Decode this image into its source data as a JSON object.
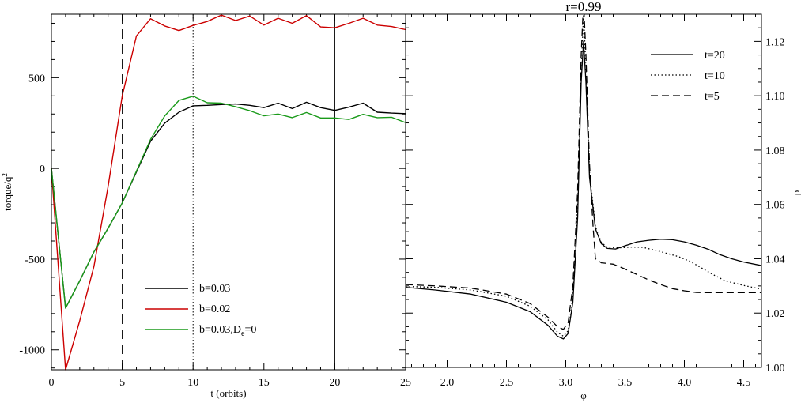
{
  "chart_data": [
    {
      "type": "line",
      "xlabel": "t (orbits)",
      "ylabel_base": "torque/q",
      "ylabel_sup": "2",
      "xlim": [
        0,
        25
      ],
      "ylim": [
        -1110,
        850
      ],
      "x_ticks": [
        0,
        5,
        10,
        15,
        20
      ],
      "x_tick_labels": [
        "0",
        "5",
        "10",
        "15",
        "20"
      ],
      "y_ticks": [
        -1000,
        -500,
        0,
        500
      ],
      "y_tick_labels": [
        "-1000",
        "-500",
        "0",
        "500"
      ],
      "vlines": [
        {
          "x": 5,
          "style": "dashed"
        },
        {
          "x": 10,
          "style": "dotted"
        },
        {
          "x": 20,
          "style": "solid"
        }
      ],
      "series": [
        {
          "name": "b=0.03",
          "color": "#000000",
          "x": [
            0,
            1,
            2,
            3,
            4,
            5,
            6,
            7,
            8,
            9,
            10,
            11,
            12,
            13,
            14,
            15,
            16,
            17,
            18,
            19,
            20,
            21,
            22,
            23,
            24,
            25
          ],
          "y": [
            0,
            -770,
            -620,
            -460,
            -330,
            -190,
            -20,
            150,
            250,
            310,
            345,
            348,
            352,
            355,
            348,
            335,
            360,
            330,
            365,
            335,
            320,
            338,
            360,
            310,
            305,
            302
          ]
        },
        {
          "name": "b=0.02",
          "color": "#cc0000",
          "x": [
            0,
            1,
            2,
            3,
            4,
            5,
            6,
            7,
            8,
            9,
            10,
            11,
            12,
            13,
            14,
            15,
            16,
            17,
            18,
            19,
            20,
            21,
            22,
            23,
            24,
            25
          ],
          "y": [
            0,
            -1110,
            -840,
            -540,
            -100,
            400,
            730,
            825,
            785,
            760,
            788,
            810,
            845,
            815,
            840,
            790,
            828,
            800,
            842,
            780,
            775,
            800,
            828,
            790,
            782,
            765
          ]
        },
        {
          "name_base": "b=0.03,D",
          "name_sub": "e",
          "name_tail": "=0",
          "color": "#1a9a1a",
          "x": [
            0,
            1,
            2,
            3,
            4,
            5,
            6,
            7,
            8,
            9,
            10,
            11,
            12,
            13,
            14,
            15,
            16,
            17,
            18,
            19,
            20,
            21,
            22,
            23,
            24,
            25
          ],
          "y": [
            0,
            -770,
            -620,
            -460,
            -330,
            -190,
            -15,
            160,
            290,
            375,
            398,
            362,
            360,
            340,
            318,
            290,
            300,
            280,
            308,
            278,
            278,
            270,
            298,
            280,
            282,
            253
          ]
        }
      ],
      "legend_position": "bottom-center"
    },
    {
      "type": "line",
      "title": "r=0.99",
      "xlabel": "φ",
      "ylabel": "ρ",
      "xlim": [
        1.65,
        4.65
      ],
      "ylim": [
        1.0,
        1.13
      ],
      "x_ticks": [
        2.0,
        2.5,
        3.0,
        3.5,
        4.0,
        4.5
      ],
      "x_tick_labels": [
        "2.0",
        "2.5",
        "3.0",
        "3.5",
        "4.0",
        "4.5"
      ],
      "y_ticks": [
        1.0,
        1.02,
        1.04,
        1.06,
        1.08,
        1.1,
        1.12
      ],
      "y_tick_labels": [
        "1.00",
        "1.02",
        "1.04",
        "1.06",
        "1.08",
        "1.10",
        "1.12"
      ],
      "series": [
        {
          "name": "t=20",
          "style": "solid",
          "x": [
            1.65,
            1.9,
            2.2,
            2.5,
            2.7,
            2.85,
            2.93,
            2.98,
            3.02,
            3.06,
            3.1,
            3.13,
            3.15,
            3.17,
            3.2,
            3.25,
            3.3,
            3.35,
            3.42,
            3.5,
            3.6,
            3.7,
            3.8,
            3.9,
            4.0,
            4.1,
            4.2,
            4.3,
            4.4,
            4.5,
            4.65
          ],
          "y": [
            1.0295,
            1.0285,
            1.027,
            1.024,
            1.0205,
            1.0155,
            1.0115,
            1.0105,
            1.0125,
            1.024,
            1.055,
            1.105,
            1.12,
            1.105,
            1.07,
            1.051,
            1.0455,
            1.0438,
            1.0436,
            1.0448,
            1.0462,
            1.0468,
            1.0472,
            1.047,
            1.0462,
            1.045,
            1.0435,
            1.0415,
            1.04,
            1.0388,
            1.0375
          ]
        },
        {
          "name": "t=10",
          "style": "dotted",
          "x": [
            1.65,
            1.9,
            2.2,
            2.5,
            2.7,
            2.85,
            2.93,
            2.98,
            3.02,
            3.06,
            3.1,
            3.13,
            3.15,
            3.17,
            3.2,
            3.25,
            3.3,
            3.35,
            3.45,
            3.55,
            3.65,
            3.75,
            3.85,
            3.95,
            4.05,
            4.15,
            4.25,
            4.35,
            4.5,
            4.65
          ],
          "y": [
            1.0298,
            1.0295,
            1.0285,
            1.0262,
            1.0225,
            1.0175,
            1.013,
            1.0115,
            1.0135,
            1.026,
            1.06,
            1.11,
            1.13,
            1.11,
            1.072,
            1.0518,
            1.046,
            1.0442,
            1.044,
            1.0443,
            1.0442,
            1.0432,
            1.042,
            1.0408,
            1.039,
            1.0365,
            1.034,
            1.0318,
            1.0302,
            1.0288
          ]
        },
        {
          "name": "t=5",
          "style": "dashed",
          "x": [
            1.65,
            1.9,
            2.2,
            2.5,
            2.7,
            2.85,
            2.93,
            2.98,
            3.02,
            3.06,
            3.1,
            3.13,
            3.15,
            3.17,
            3.2,
            3.23,
            3.25,
            3.3,
            3.4,
            3.5,
            3.6,
            3.7,
            3.8,
            3.9,
            4.0,
            4.1,
            4.2,
            4.3,
            4.4,
            4.5,
            4.65
          ],
          "y": [
            1.0305,
            1.03,
            1.0292,
            1.027,
            1.0235,
            1.0185,
            1.015,
            1.014,
            1.0165,
            1.03,
            1.065,
            1.115,
            1.135,
            1.115,
            1.075,
            1.052,
            1.04,
            1.0385,
            1.038,
            1.0362,
            1.0342,
            1.0322,
            1.0305,
            1.029,
            1.0282,
            1.0276,
            1.0275,
            1.0275,
            1.0275,
            1.0275,
            1.0275
          ]
        }
      ],
      "legend_position": "top-right"
    }
  ]
}
